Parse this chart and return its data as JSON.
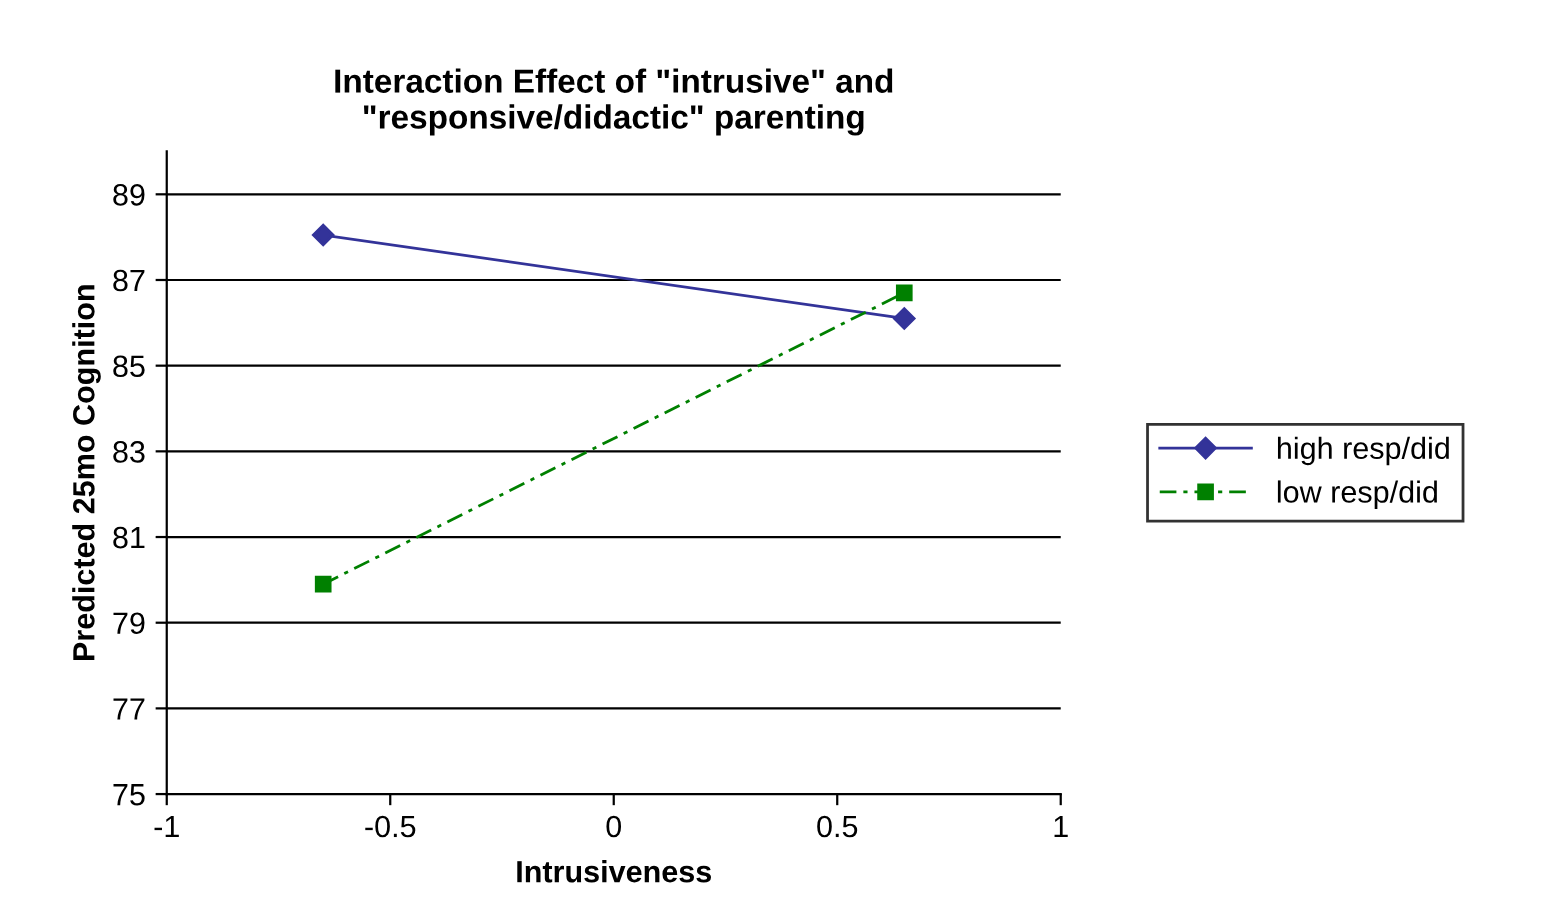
{
  "chart_data": {
    "type": "line",
    "title": "Interaction Effect of \"intrusive\" and\n\"responsive/didactic\" parenting",
    "xlabel": "Intrusiveness",
    "ylabel": "Predicted 25mo Cognition",
    "x": [
      -0.65,
      0.65
    ],
    "series": [
      {
        "name": "high resp/did",
        "color": "#333399",
        "values": [
          88.05,
          86.1
        ],
        "marker": "diamond",
        "line_style": "solid"
      },
      {
        "name": "low resp/did",
        "color": "#008000",
        "values": [
          79.9,
          86.7
        ],
        "marker": "square",
        "line_style": "dashed"
      }
    ],
    "xlim": [
      -1,
      1
    ],
    "xticks": [
      -1,
      -0.5,
      0,
      0.5,
      1
    ],
    "ylim": [
      75,
      90
    ],
    "yticks": [
      75,
      77,
      79,
      81,
      83,
      85,
      87,
      89
    ],
    "grid": "y",
    "legend": "right"
  }
}
